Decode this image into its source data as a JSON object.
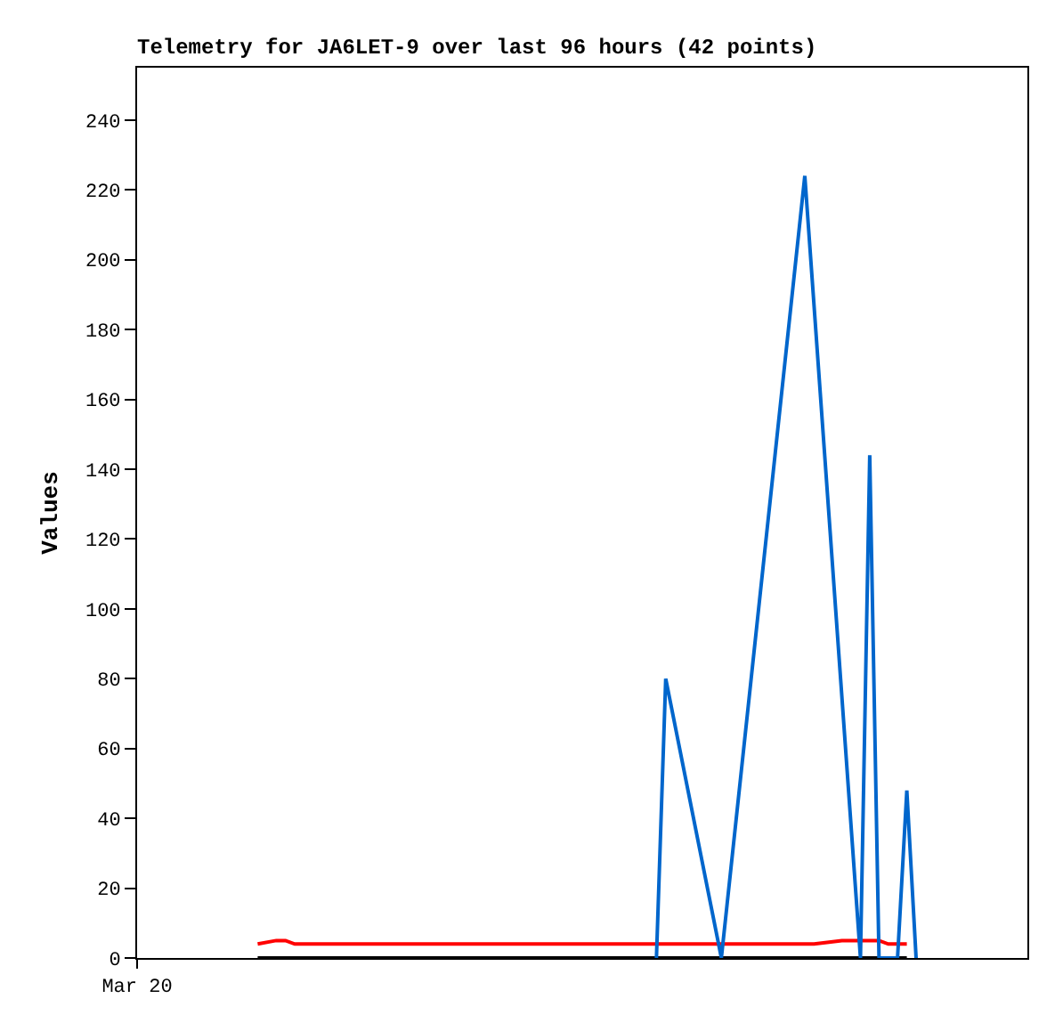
{
  "chart_data": {
    "type": "line",
    "title": "Telemetry for JA6LET-9 over last 96 hours (42 points)",
    "ylabel": "Values",
    "categories": [
      "Mar 20",
      null,
      null,
      null,
      null,
      null,
      null,
      null,
      null,
      null,
      null,
      null,
      null,
      null,
      null,
      null,
      null,
      null,
      null,
      null,
      null,
      null,
      null,
      null,
      null,
      null,
      null,
      null,
      null,
      null,
      null,
      null,
      null,
      null,
      null,
      null,
      null,
      null,
      null,
      null,
      null,
      null,
      null,
      null,
      null,
      null,
      null,
      null,
      null,
      null,
      null,
      null,
      null,
      null,
      null,
      null,
      null,
      null,
      null,
      null,
      null,
      null,
      null,
      null,
      null,
      null,
      null,
      null,
      null,
      null,
      null,
      null,
      null,
      null,
      null,
      null,
      null,
      null,
      null,
      null,
      null,
      null,
      null,
      null,
      null,
      null,
      null,
      null,
      null,
      null,
      null,
      null,
      null,
      null,
      null,
      null,
      null
    ],
    "ylim": [
      0,
      255
    ],
    "yticks": [
      0,
      20,
      40,
      60,
      80,
      100,
      120,
      140,
      160,
      180,
      200,
      220,
      240
    ],
    "grid": false,
    "marker": "none",
    "line_style": "solid",
    "series": [
      {
        "color": "#000000",
        "values": [
          null,
          null,
          null,
          null,
          null,
          null,
          null,
          null,
          null,
          null,
          null,
          null,
          null,
          0,
          null,
          null,
          null,
          null,
          null,
          null,
          null,
          null,
          null,
          null,
          null,
          null,
          null,
          null,
          null,
          null,
          null,
          null,
          null,
          null,
          null,
          null,
          null,
          null,
          null,
          null,
          null,
          null,
          null,
          null,
          null,
          null,
          null,
          null,
          null,
          null,
          null,
          null,
          null,
          null,
          null,
          null,
          null,
          null,
          null,
          null,
          null,
          null,
          null,
          null,
          null,
          null,
          null,
          null,
          null,
          null,
          null,
          null,
          null,
          null,
          null,
          null,
          null,
          null,
          null,
          null,
          null,
          null,
          null,
          0,
          null,
          null,
          null,
          null,
          null,
          null,
          null,
          null,
          null,
          null,
          null,
          null,
          null
        ]
      },
      {
        "color": "#ff0000",
        "values": [
          null,
          null,
          null,
          null,
          null,
          null,
          null,
          null,
          null,
          null,
          null,
          null,
          null,
          4,
          null,
          5,
          5,
          4,
          null,
          null,
          null,
          null,
          null,
          null,
          null,
          null,
          null,
          null,
          null,
          null,
          null,
          null,
          null,
          null,
          null,
          null,
          null,
          null,
          null,
          null,
          null,
          null,
          null,
          null,
          null,
          null,
          null,
          null,
          null,
          null,
          null,
          null,
          null,
          null,
          null,
          null,
          null,
          null,
          null,
          null,
          null,
          null,
          null,
          null,
          null,
          null,
          null,
          null,
          null,
          null,
          null,
          null,
          null,
          4,
          null,
          null,
          5,
          null,
          null,
          null,
          5,
          4,
          null,
          4,
          null,
          null,
          null,
          null,
          null,
          null,
          null,
          null,
          null,
          null,
          null,
          null,
          null
        ]
      },
      {
        "color": "#0066cc",
        "values": [
          null,
          null,
          null,
          null,
          null,
          null,
          null,
          null,
          null,
          null,
          null,
          null,
          null,
          null,
          null,
          null,
          null,
          null,
          null,
          null,
          null,
          null,
          null,
          null,
          null,
          null,
          null,
          null,
          null,
          null,
          null,
          null,
          null,
          null,
          null,
          null,
          null,
          null,
          null,
          null,
          null,
          null,
          null,
          null,
          null,
          null,
          null,
          null,
          null,
          null,
          null,
          null,
          null,
          null,
          null,
          null,
          0,
          80,
          null,
          null,
          null,
          null,
          null,
          0,
          null,
          null,
          null,
          null,
          null,
          null,
          null,
          null,
          224,
          null,
          null,
          null,
          null,
          null,
          0,
          144,
          0,
          null,
          0,
          48,
          0,
          null,
          null,
          null,
          null,
          null,
          null,
          null,
          null,
          null,
          null,
          null,
          null
        ]
      }
    ]
  }
}
